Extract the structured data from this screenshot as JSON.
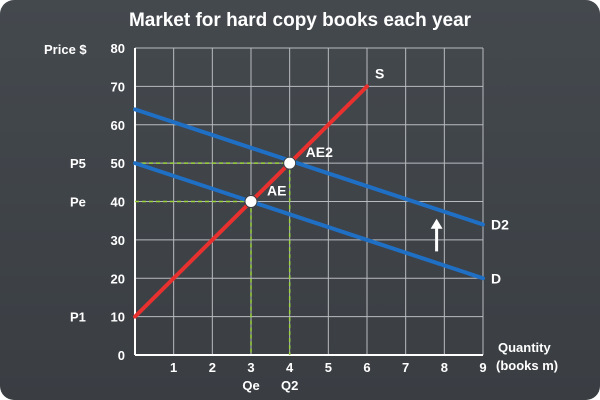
{
  "chart_data": {
    "type": "line",
    "title": "Market for hard copy books each year",
    "ylabel": "Price $",
    "xlabel_lines": [
      "Quantity",
      "(books m)"
    ],
    "xlim": [
      0,
      9
    ],
    "ylim": [
      0,
      80
    ],
    "x_ticks": [
      1,
      2,
      3,
      4,
      5,
      6,
      7,
      8,
      9
    ],
    "y_ticks": [
      0,
      10,
      20,
      30,
      40,
      50,
      60,
      70,
      80
    ],
    "grid": true,
    "series": [
      {
        "name": "S",
        "color": "#e8312f",
        "points": [
          [
            0,
            10
          ],
          [
            6,
            70
          ]
        ]
      },
      {
        "name": "D",
        "color": "#1f6fc4",
        "points": [
          [
            0,
            50
          ],
          [
            9,
            20
          ]
        ]
      },
      {
        "name": "D2",
        "color": "#1f6fc4",
        "points": [
          [
            0,
            64
          ],
          [
            9,
            34
          ]
        ]
      }
    ],
    "equilibria": [
      {
        "label": "AE",
        "x": 3,
        "y": 40
      },
      {
        "label": "AE2",
        "x": 4,
        "y": 50
      }
    ],
    "guide_color": "#9ad33a",
    "price_labels": [
      {
        "label": "P5",
        "value": 50
      },
      {
        "label": "Pe",
        "value": 40
      },
      {
        "label": "P1",
        "value": 10
      }
    ],
    "quantity_labels": [
      {
        "label": "Qe",
        "value": 3
      },
      {
        "label": "Q2",
        "value": 4
      }
    ],
    "annotations": [
      {
        "type": "arrow-up",
        "x": 7.8,
        "y_from": 27,
        "y_to": 35
      }
    ]
  }
}
